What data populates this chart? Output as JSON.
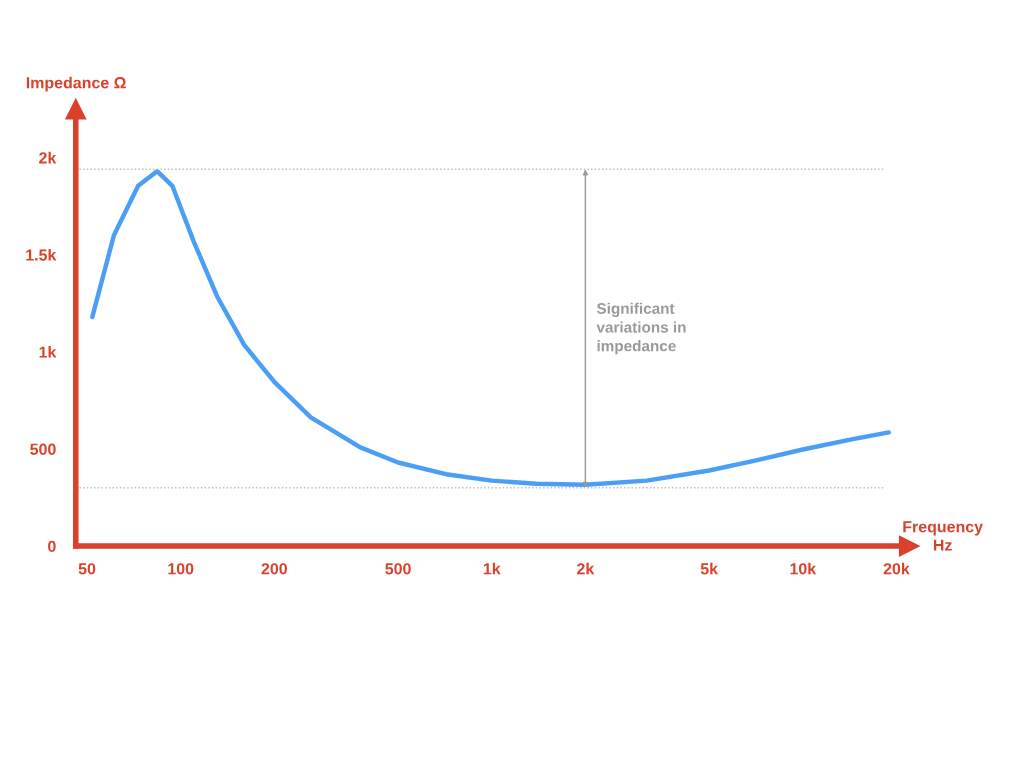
{
  "chart_data": {
    "type": "line",
    "xlabel": "Frequency\nHz",
    "ylabel": "Impedance Ω",
    "x": [
      52,
      61,
      73,
      84,
      94,
      110,
      131,
      160,
      200,
      262,
      378,
      500,
      723,
      1000,
      1390,
      2000,
      3150,
      5000,
      7020,
      10000,
      14350,
      18900
    ],
    "series": [
      {
        "color": "#4a9ff5",
        "values": [
          1180,
          1600,
          1855,
          1930,
          1855,
          1570,
          1285,
          1036,
          845,
          663,
          508,
          430,
          368,
          337,
          321,
          316,
          337,
          389,
          440,
          497,
          549,
          585
        ]
      }
    ],
    "xlim": [
      46,
      22000
    ],
    "ylim": [
      0,
      2250
    ],
    "xticks": [
      50,
      100,
      200,
      500,
      {
        "value": 1000,
        "label": "1k"
      },
      {
        "value": 2000,
        "label": "2k"
      },
      {
        "value": 5000,
        "label": "5k"
      },
      {
        "value": 10000,
        "label": "10k"
      },
      {
        "value": 20000,
        "label": "20k"
      }
    ],
    "yticks": [
      0,
      500,
      {
        "value": 1000,
        "label": "1k"
      },
      {
        "value": 1500,
        "label": "1.5k"
      },
      {
        "value": 2000,
        "label": "2k"
      }
    ],
    "log": "x",
    "grid": false,
    "legend": false,
    "marker": "none",
    "line_style": "solid",
    "ref_lines": [
      {
        "axis": "y",
        "value": 1940,
        "color": "#bbbbbb",
        "line_style": "dotted"
      },
      {
        "axis": "y",
        "value": 300,
        "color": "#bbbbbb",
        "line_style": "dotted"
      }
    ],
    "annotations": [
      "Significant\nvariations in\nimpedance"
    ]
  }
}
